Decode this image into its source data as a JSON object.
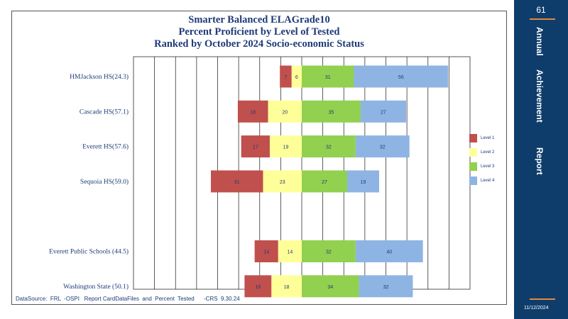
{
  "chart_data": {
    "type": "bar",
    "orientation": "horizontal-diverging",
    "title_lines": [
      "Smarter Balanced  ELAGrade10",
      "Percent  Proficient by Level of Tested",
      "Ranked by October 2024  Socio-economic   Status"
    ],
    "categories": [
      "HMJackson HS(24.3)",
      "Cascade HS(57.1)",
      "Everett  HS(57.6)",
      "Sequoia HS(59.0)",
      "Everett  Public Schools (44.5)",
      "Washington State  (50.1)"
    ],
    "series": [
      {
        "name": "Level 1",
        "color": "#c0504d",
        "values": [
          7,
          18,
          17,
          31,
          14,
          16
        ]
      },
      {
        "name": "Level 2",
        "color": "#ffff99",
        "values": [
          6,
          20,
          19,
          23,
          14,
          18
        ]
      },
      {
        "name": "Level 3",
        "color": "#92d050",
        "values": [
          31,
          35,
          32,
          27,
          32,
          34
        ]
      },
      {
        "name": "Level 4",
        "color": "#8eb4e3",
        "values": [
          56,
          27,
          32,
          19,
          40,
          32
        ]
      }
    ],
    "gap_after_index": 3,
    "xlim": [
      -100,
      100
    ],
    "grid": true,
    "legend_position": "right"
  },
  "source": "DataSource:  FRL  -OSPI   Report CardDataFiles  and  Percent  Tested      -CRS  9.30.24",
  "sidebar": {
    "page_number": "61",
    "words": [
      "Annual",
      "Achievement",
      "Report"
    ],
    "date": "11/12/2024",
    "bg_color": "#0e3d6b",
    "accent_color": "#e0893a"
  }
}
